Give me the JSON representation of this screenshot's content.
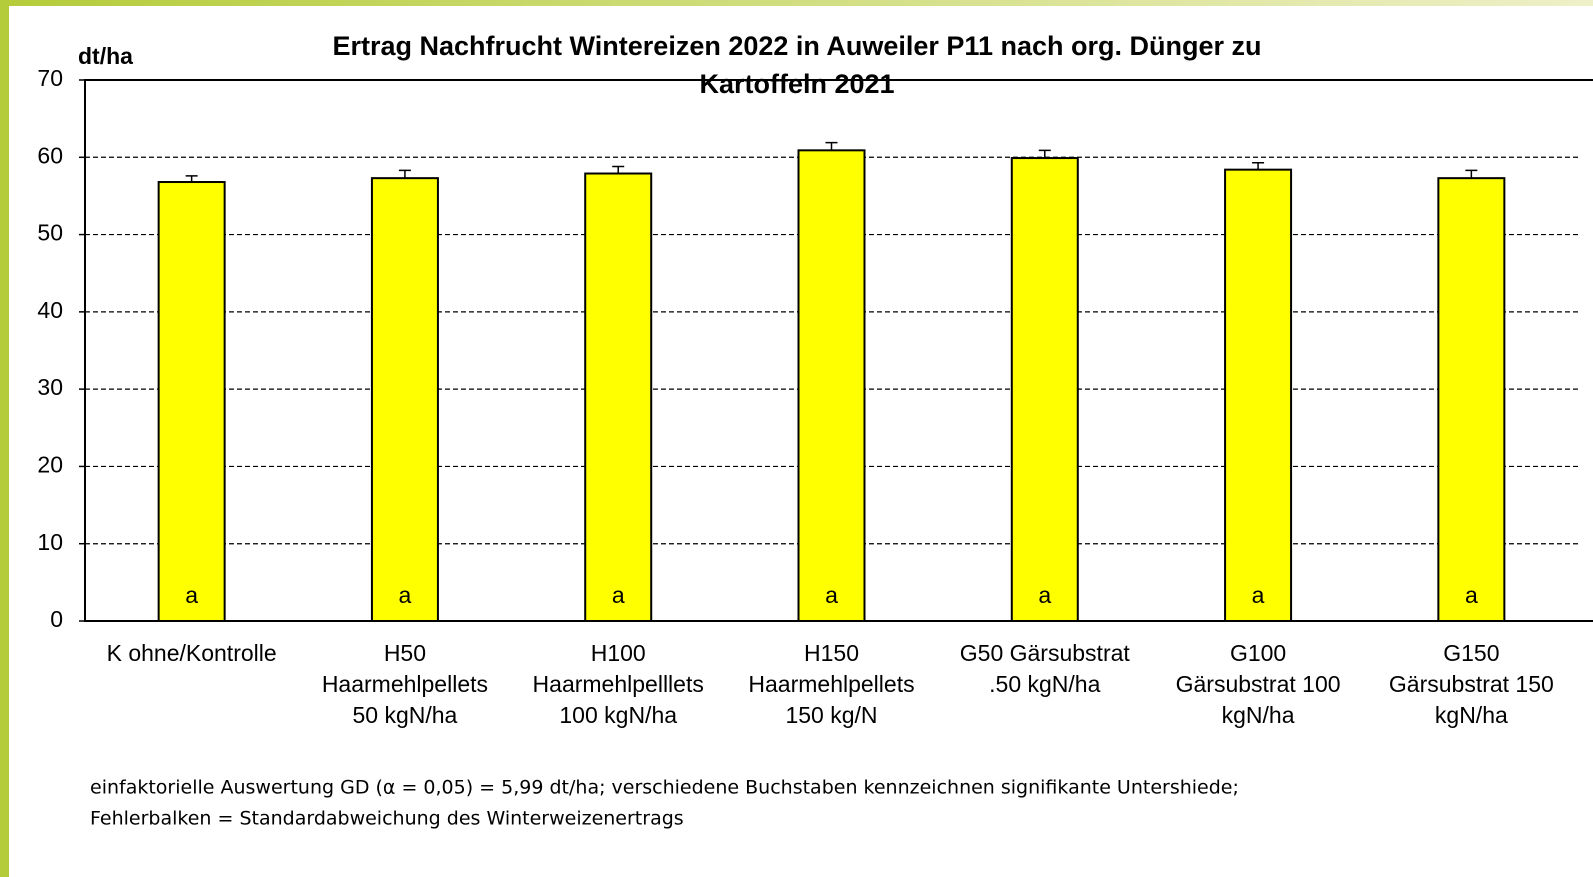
{
  "chart_data": {
    "type": "bar",
    "title": [
      "Ertrag Nachfrucht Wintereizen 2022 in Auweiler P11 nach org. Dünger zu",
      "Kartoffeln 2021"
    ],
    "y_label": "dt/ha",
    "categories": [
      [
        "K ohne/Kontrolle"
      ],
      [
        "H50",
        "Haarmehlpellets",
        "50 kgN/ha"
      ],
      [
        "H100",
        "Haarmehlpelllets",
        "100 kgN/ha"
      ],
      [
        "H150",
        "Haarmehlpellets",
        "150 kg/N"
      ],
      [
        "G50 Gärsubstrat",
        ".50 kgN/ha"
      ],
      [
        "G100",
        "Gärsubstrat 100",
        "kgN/ha"
      ],
      [
        "G150",
        "Gärsubstrat 150",
        "kgN/ha"
      ]
    ],
    "values": [
      56.8,
      57.3,
      57.9,
      60.9,
      59.9,
      58.4,
      57.3
    ],
    "errors": [
      0.8,
      1.0,
      0.9,
      1.0,
      1.0,
      0.9,
      1.0
    ],
    "letters": [
      "a",
      "a",
      "a",
      "a",
      "a",
      "a",
      "a"
    ],
    "color": "#ffff00",
    "ylim": [
      0,
      70
    ],
    "yticks": [
      0,
      10,
      20,
      30,
      40,
      50,
      60,
      70
    ],
    "grid": true,
    "footnote": [
      "einfaktorielle  Auswertung  GD  (α = 0,05) = 5,99 dt/ha; verschiedene Buchstaben kennzeichnen signifikante Untershiede;",
      "Fehlerbalken = Standardabweichung des Winterweizenertrags"
    ]
  }
}
